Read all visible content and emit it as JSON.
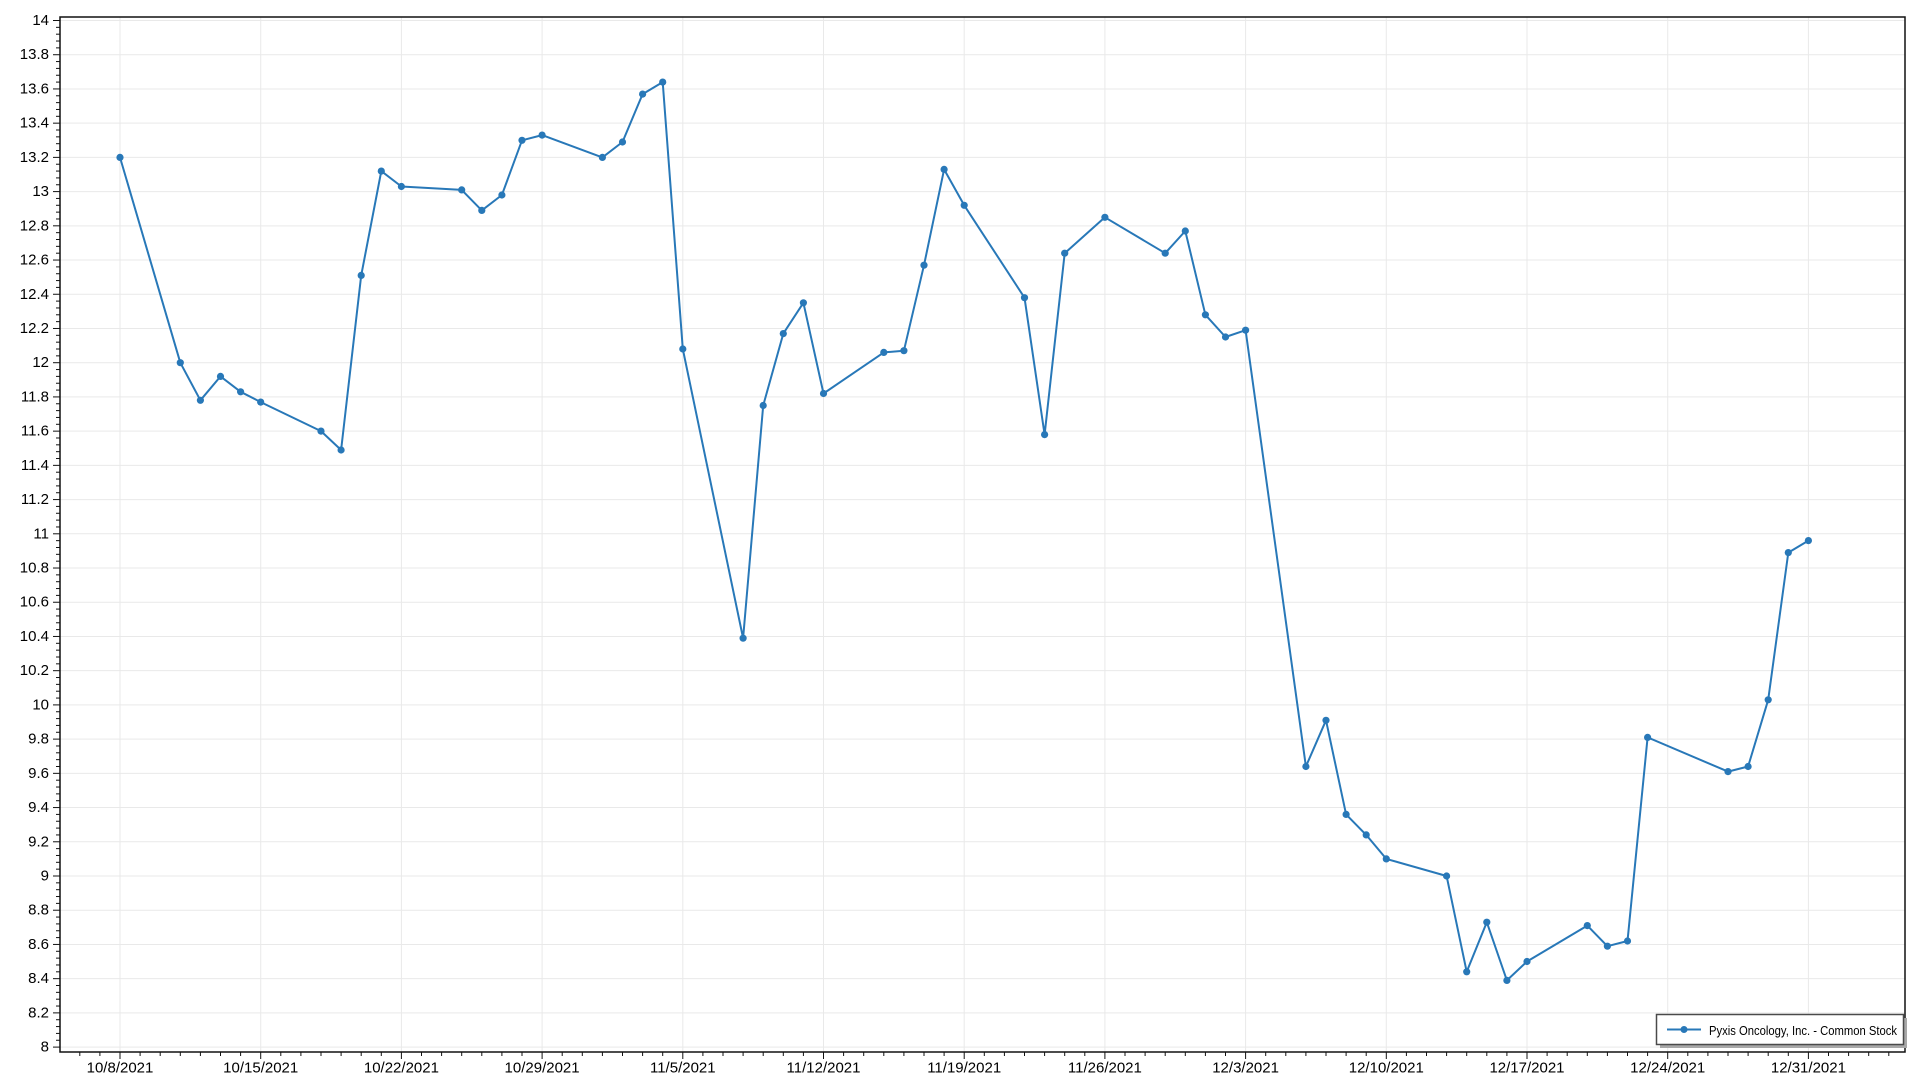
{
  "window": {
    "background": "#ffffff"
  },
  "chart_data": {
    "type": "line",
    "title": "",
    "legend": {
      "label": "Pyxis Oncology, Inc. - Common Stock",
      "position": "bottom-right"
    },
    "grid": true,
    "colors": {
      "series": "#2878b8",
      "grid": "#e9e9e9",
      "border": "#111111",
      "tick": "#111111",
      "text": "#000000",
      "legend_border": "#4a4a4a",
      "legend_shadow": "#a8a8a8",
      "legend_bg": "#ffffff"
    },
    "x_axis": {
      "tick_labels": [
        "10/8/2021",
        "10/15/2021",
        "10/22/2021",
        "10/29/2021",
        "11/5/2021",
        "11/12/2021",
        "11/19/2021",
        "11/26/2021",
        "12/3/2021",
        "12/10/2021",
        "12/17/2021",
        "12/24/2021",
        "12/31/2021"
      ],
      "minor_tick_interval_days": 1
    },
    "y_axis": {
      "min": 8,
      "max": 14,
      "major_step": 0.2,
      "minor_step": 0.04,
      "tick_labels": [
        "8",
        "8.2",
        "8.4",
        "8.6",
        "8.8",
        "9",
        "9.2",
        "9.4",
        "9.6",
        "9.8",
        "10",
        "10.2",
        "10.4",
        "10.6",
        "10.8",
        "11",
        "11.2",
        "11.4",
        "11.6",
        "11.8",
        "12",
        "12.2",
        "12.4",
        "12.6",
        "12.8",
        "13",
        "13.2",
        "13.4",
        "13.6",
        "13.8",
        "14"
      ]
    },
    "series": [
      {
        "name": "Pyxis Oncology, Inc. - Common Stock",
        "color": "#2878b8",
        "marker": "circle",
        "points": [
          [
            "10/8/2021",
            13.2
          ],
          [
            "10/11/2021",
            12.0
          ],
          [
            "10/12/2021",
            11.78
          ],
          [
            "10/13/2021",
            11.92
          ],
          [
            "10/14/2021",
            11.83
          ],
          [
            "10/15/2021",
            11.77
          ],
          [
            "10/18/2021",
            11.6
          ],
          [
            "10/19/2021",
            11.49
          ],
          [
            "10/20/2021",
            12.51
          ],
          [
            "10/21/2021",
            13.12
          ],
          [
            "10/22/2021",
            13.03
          ],
          [
            "10/25/2021",
            13.01
          ],
          [
            "10/26/2021",
            12.89
          ],
          [
            "10/27/2021",
            12.98
          ],
          [
            "10/28/2021",
            13.3
          ],
          [
            "10/29/2021",
            13.33
          ],
          [
            "11/1/2021",
            13.2
          ],
          [
            "11/2/2021",
            13.29
          ],
          [
            "11/3/2021",
            13.57
          ],
          [
            "11/4/2021",
            13.64
          ],
          [
            "11/5/2021",
            12.08
          ],
          [
            "11/8/2021",
            10.39
          ],
          [
            "11/9/2021",
            11.75
          ],
          [
            "11/10/2021",
            12.17
          ],
          [
            "11/11/2021",
            12.35
          ],
          [
            "11/12/2021",
            11.82
          ],
          [
            "11/15/2021",
            12.06
          ],
          [
            "11/16/2021",
            12.07
          ],
          [
            "11/17/2021",
            12.57
          ],
          [
            "11/18/2021",
            13.13
          ],
          [
            "11/19/2021",
            12.92
          ],
          [
            "11/22/2021",
            12.38
          ],
          [
            "11/23/2021",
            11.58
          ],
          [
            "11/24/2021",
            12.64
          ],
          [
            "11/26/2021",
            12.85
          ],
          [
            "11/29/2021",
            12.64
          ],
          [
            "11/30/2021",
            12.77
          ],
          [
            "12/1/2021",
            12.28
          ],
          [
            "12/2/2021",
            12.15
          ],
          [
            "12/3/2021",
            12.19
          ],
          [
            "12/6/2021",
            9.64
          ],
          [
            "12/7/2021",
            9.91
          ],
          [
            "12/8/2021",
            9.36
          ],
          [
            "12/9/2021",
            9.24
          ],
          [
            "12/10/2021",
            9.1
          ],
          [
            "12/13/2021",
            9.0
          ],
          [
            "12/14/2021",
            8.44
          ],
          [
            "12/15/2021",
            8.73
          ],
          [
            "12/16/2021",
            8.39
          ],
          [
            "12/17/2021",
            8.5
          ],
          [
            "12/20/2021",
            8.71
          ],
          [
            "12/21/2021",
            8.59
          ],
          [
            "12/22/2021",
            8.62
          ],
          [
            "12/23/2021",
            9.81
          ],
          [
            "12/27/2021",
            9.61
          ],
          [
            "12/28/2021",
            9.64
          ],
          [
            "12/29/2021",
            10.03
          ],
          [
            "12/30/2021",
            10.89
          ],
          [
            "12/31/2021",
            10.96
          ]
        ]
      }
    ]
  }
}
